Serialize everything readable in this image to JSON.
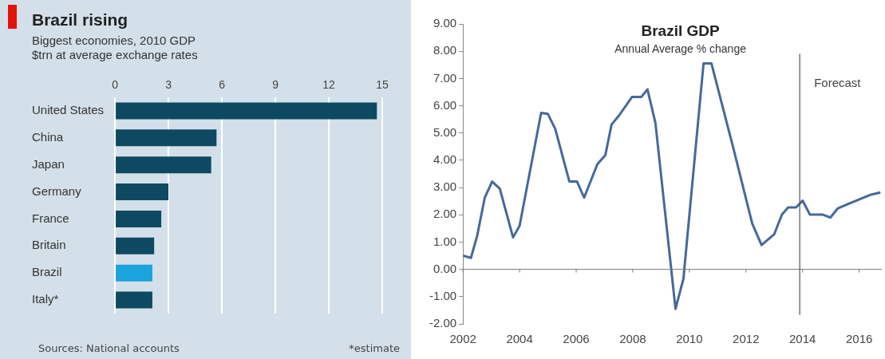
{
  "chart_data": [
    {
      "type": "bar",
      "orientation": "horizontal",
      "title": "Brazil rising",
      "subtitle": "Biggest economies, 2010 GDP",
      "xlabel": "$trn at average exchange rates",
      "categories": [
        "United States",
        "China",
        "Japan",
        "Germany",
        "France",
        "Britain",
        "Brazil",
        "Italy*"
      ],
      "values": [
        14.7,
        5.7,
        5.4,
        3.0,
        2.6,
        2.2,
        2.1,
        2.1
      ],
      "colors": [
        "#0d4a62",
        "#0d4a62",
        "#0d4a62",
        "#0d4a62",
        "#0d4a62",
        "#0d4a62",
        "#1ba3dd",
        "#0d4a62"
      ],
      "xlim": [
        0,
        15
      ],
      "xticks": [
        0,
        3,
        6,
        9,
        12,
        15
      ],
      "grid": "x",
      "annotations": [
        "Sources: National accounts",
        "*estimate"
      ]
    },
    {
      "type": "line",
      "title": "Brazil GDP",
      "subtitle": "Annual Average % change",
      "marker": "none",
      "series": [
        {
          "color": "#46699a",
          "x": [
            2002.0,
            2002.28,
            2002.5,
            2002.77,
            2003.03,
            2003.3,
            2003.77,
            2004.0,
            2004.76,
            2005.0,
            2005.26,
            2005.76,
            2006.03,
            2006.28,
            2006.75,
            2007.03,
            2007.25,
            2007.52,
            2007.97,
            2008.3,
            2008.52,
            2008.8,
            2009.51,
            2009.79,
            2010.5,
            2010.78,
            2011.56,
            2012.22,
            2012.55,
            2013.0,
            2013.27,
            2013.49,
            2013.77,
            2014.0,
            2014.26,
            2014.7,
            2014.98,
            2015.25,
            2015.75,
            2016.42,
            2016.75
          ],
          "values": [
            0.5,
            0.42,
            1.23,
            2.63,
            3.22,
            2.96,
            1.17,
            1.6,
            5.74,
            5.7,
            5.15,
            3.22,
            3.22,
            2.63,
            3.86,
            4.19,
            5.31,
            5.65,
            6.32,
            6.32,
            6.6,
            5.37,
            -1.45,
            -0.34,
            7.55,
            7.55,
            4.42,
            1.68,
            0.89,
            1.29,
            2.01,
            2.27,
            2.27,
            2.52,
            2.01,
            2.01,
            1.9,
            2.24,
            2.46,
            2.74,
            2.82
          ]
        }
      ],
      "xlim": [
        2002,
        2016.8
      ],
      "xticks": [
        2002,
        2004,
        2006,
        2008,
        2010,
        2012,
        2014,
        2016
      ],
      "ylim": [
        -2,
        9
      ],
      "yticks": [
        {
          "value": -2,
          "label": "-2.00"
        },
        {
          "value": -1,
          "label": "-1.00"
        },
        {
          "value": 0,
          "label": "0.00"
        },
        {
          "value": 1,
          "label": "1.00"
        },
        {
          "value": 2,
          "label": "2.00"
        },
        {
          "value": 3,
          "label": "3.00"
        },
        {
          "value": 4,
          "label": "4.00"
        },
        {
          "value": 5,
          "label": "5.00"
        },
        {
          "value": 6,
          "label": "6.00"
        },
        {
          "value": 7,
          "label": "7.00"
        },
        {
          "value": 8,
          "label": "8.00"
        },
        {
          "value": 9,
          "label": "9.00"
        }
      ],
      "ref_lines": [
        {
          "axis": "x",
          "value": 2013.9,
          "label": "Forecast",
          "color": "#555555"
        }
      ]
    }
  ]
}
